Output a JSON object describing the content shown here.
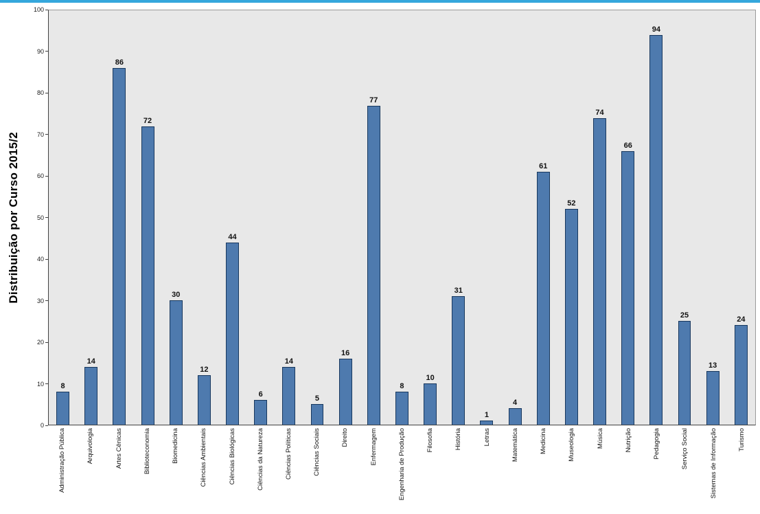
{
  "window": {
    "top_border_color": "#35a7dc"
  },
  "chart_data": {
    "type": "bar",
    "title": "",
    "xlabel": "",
    "ylabel": "Distribuição por Curso 2015/2",
    "ylim": [
      0,
      100
    ],
    "yticks": [
      0,
      10,
      20,
      30,
      40,
      50,
      60,
      70,
      80,
      90,
      100
    ],
    "grid": false,
    "legend": null,
    "plot_bg": "#e8e8e8",
    "bar_color": "#4e7aae",
    "bar_border_color": "#17375d",
    "categories": [
      "Administração Pública",
      "Arquivologia",
      "Artes Cênicas",
      "Biblioteconomia",
      "Biomedicina",
      "Ciências Ambientais",
      "Ciências Biológicas",
      "Ciências da Natureza",
      "Ciências Políticas",
      "Ciências Sociais",
      "Direito",
      "Enfermagem",
      "Engenharia de Produção",
      "Filosofia",
      "História",
      "Letras",
      "Matemática",
      "Medicina",
      "Museologia",
      "Música",
      "Nutrição",
      "Pedagogia",
      "Serviço Social",
      "Sistemas de Informação",
      "Turismo"
    ],
    "values": [
      8,
      14,
      86,
      72,
      30,
      12,
      44,
      6,
      14,
      5,
      16,
      77,
      8,
      10,
      31,
      1,
      4,
      61,
      52,
      74,
      66,
      94,
      25,
      13,
      24
    ]
  }
}
